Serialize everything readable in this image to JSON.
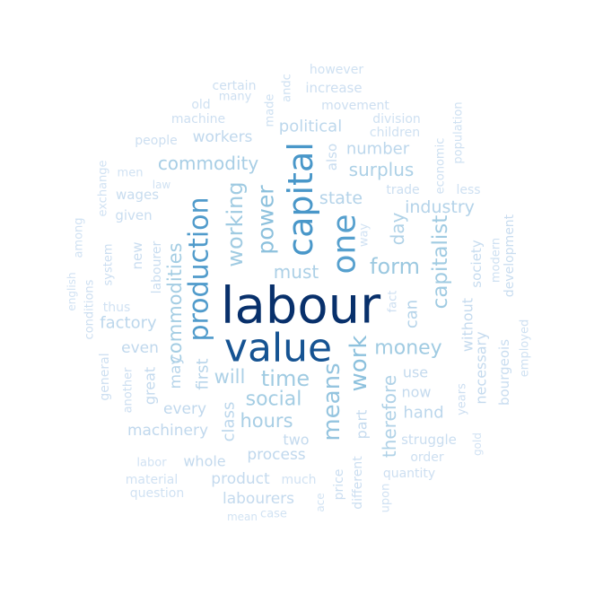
{
  "word_cloud": {
    "words": [
      {
        "text": "labour",
        "weight": 1.0
      },
      {
        "text": "value",
        "weight": 0.92
      },
      {
        "text": "capital",
        "weight": 0.7
      },
      {
        "text": "production",
        "weight": 0.68
      },
      {
        "text": "one",
        "weight": 0.66
      },
      {
        "text": "power",
        "weight": 0.5
      },
      {
        "text": "work",
        "weight": 0.5
      },
      {
        "text": "means",
        "weight": 0.48
      },
      {
        "text": "form",
        "weight": 0.46
      },
      {
        "text": "money",
        "weight": 0.44
      },
      {
        "text": "working",
        "weight": 0.44
      },
      {
        "text": "time",
        "weight": 0.44
      },
      {
        "text": "capitalist",
        "weight": 0.44
      },
      {
        "text": "social",
        "weight": 0.42
      },
      {
        "text": "commodities",
        "weight": 0.42
      },
      {
        "text": "commodity",
        "weight": 0.4
      },
      {
        "text": "hours",
        "weight": 0.4
      },
      {
        "text": "surplus",
        "weight": 0.38
      },
      {
        "text": "must",
        "weight": 0.38
      },
      {
        "text": "will",
        "weight": 0.38
      },
      {
        "text": "therefore",
        "weight": 0.36
      },
      {
        "text": "day",
        "weight": 0.36
      },
      {
        "text": "state",
        "weight": 0.34
      },
      {
        "text": "industry",
        "weight": 0.34
      },
      {
        "text": "can",
        "weight": 0.34
      },
      {
        "text": "may",
        "weight": 0.32
      },
      {
        "text": "first",
        "weight": 0.32
      },
      {
        "text": "political",
        "weight": 0.3
      },
      {
        "text": "number",
        "weight": 0.3
      },
      {
        "text": "factory",
        "weight": 0.3
      },
      {
        "text": "hand",
        "weight": 0.3
      },
      {
        "text": "class",
        "weight": 0.3
      },
      {
        "text": "workers",
        "weight": 0.28
      },
      {
        "text": "process",
        "weight": 0.28
      },
      {
        "text": "machinery",
        "weight": 0.28
      },
      {
        "text": "every",
        "weight": 0.28
      },
      {
        "text": "even",
        "weight": 0.28
      },
      {
        "text": "now",
        "weight": 0.26
      },
      {
        "text": "use",
        "weight": 0.26
      },
      {
        "text": "two",
        "weight": 0.26
      },
      {
        "text": "whole",
        "weight": 0.26
      },
      {
        "text": "product",
        "weight": 0.26
      },
      {
        "text": "labourers",
        "weight": 0.26
      },
      {
        "text": "part",
        "weight": 0.26
      },
      {
        "text": "great",
        "weight": 0.26
      },
      {
        "text": "without",
        "weight": 0.26
      },
      {
        "text": "necessary",
        "weight": 0.26
      },
      {
        "text": "society",
        "weight": 0.24
      },
      {
        "text": "also",
        "weight": 0.24
      },
      {
        "text": "wages",
        "weight": 0.24
      },
      {
        "text": "given",
        "weight": 0.22
      },
      {
        "text": "new",
        "weight": 0.22
      },
      {
        "text": "labourer",
        "weight": 0.22
      },
      {
        "text": "bourgeois",
        "weight": 0.22
      },
      {
        "text": "development",
        "weight": 0.22
      },
      {
        "text": "struggle",
        "weight": 0.22
      },
      {
        "text": "system",
        "weight": 0.2
      },
      {
        "text": "trade",
        "weight": 0.2
      },
      {
        "text": "price",
        "weight": 0.2
      },
      {
        "text": "different",
        "weight": 0.2
      },
      {
        "text": "fact",
        "weight": 0.18
      },
      {
        "text": "another",
        "weight": 0.18
      },
      {
        "text": "general",
        "weight": 0.18
      },
      {
        "text": "conditions",
        "weight": 0.18
      },
      {
        "text": "years",
        "weight": 0.18
      },
      {
        "text": "order",
        "weight": 0.18
      },
      {
        "text": "quantity",
        "weight": 0.18
      },
      {
        "text": "machine",
        "weight": 0.18
      },
      {
        "text": "people",
        "weight": 0.18
      },
      {
        "text": "movement",
        "weight": 0.18
      },
      {
        "text": "increase",
        "weight": 0.18
      },
      {
        "text": "certain",
        "weight": 0.18
      },
      {
        "text": "many",
        "weight": 0.18
      },
      {
        "text": "old",
        "weight": 0.16
      },
      {
        "text": "made",
        "weight": 0.16
      },
      {
        "text": "andc",
        "weight": 0.16
      },
      {
        "text": "however",
        "weight": 0.16
      },
      {
        "text": "division",
        "weight": 0.16
      },
      {
        "text": "children",
        "weight": 0.16
      },
      {
        "text": "economic",
        "weight": 0.16
      },
      {
        "text": "population",
        "weight": 0.16
      },
      {
        "text": "less",
        "weight": 0.16
      },
      {
        "text": "modern",
        "weight": 0.16
      },
      {
        "text": "employed",
        "weight": 0.16
      },
      {
        "text": "gold",
        "weight": 0.14
      },
      {
        "text": "much",
        "weight": 0.14
      },
      {
        "text": "upon",
        "weight": 0.14
      },
      {
        "text": "way",
        "weight": 0.14
      },
      {
        "text": "men",
        "weight": 0.14
      },
      {
        "text": "law",
        "weight": 0.14
      },
      {
        "text": "exchange",
        "weight": 0.14
      },
      {
        "text": "among",
        "weight": 0.14
      },
      {
        "text": "english",
        "weight": 0.14
      },
      {
        "text": "thus",
        "weight": 0.14
      },
      {
        "text": "labor",
        "weight": 0.14
      },
      {
        "text": "material",
        "weight": 0.14
      },
      {
        "text": "question",
        "weight": 0.14
      },
      {
        "text": "case",
        "weight": 0.12
      },
      {
        "text": "mean",
        "weight": 0.12
      },
      {
        "text": "ace",
        "weight": 0.12
      }
    ]
  }
}
